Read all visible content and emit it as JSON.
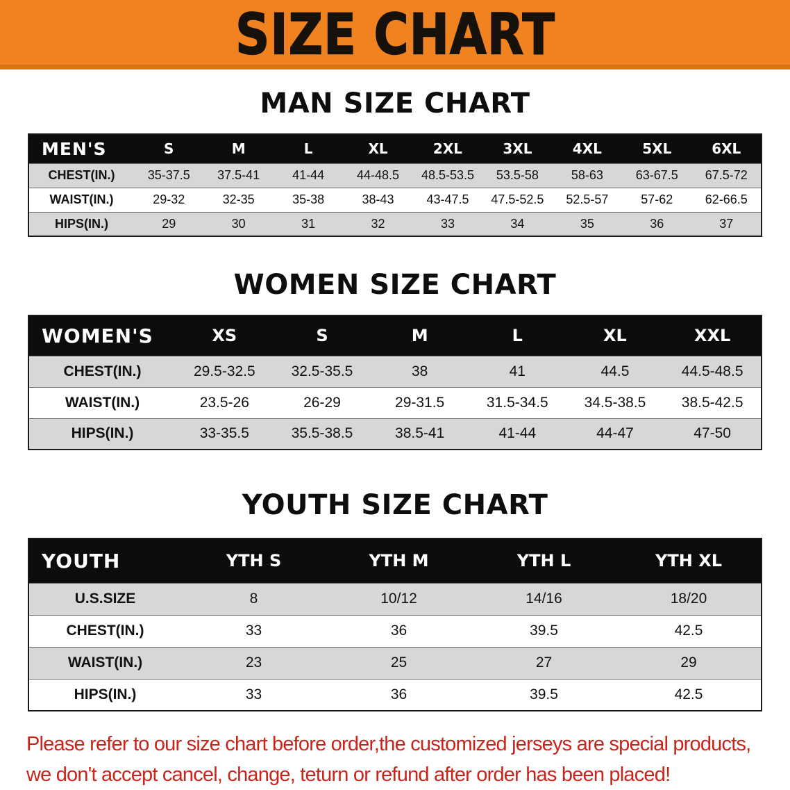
{
  "banner": {
    "title": "SIZE CHART",
    "bg_color": "#f0831f"
  },
  "sections": [
    {
      "heading": "MAN SIZE CHART",
      "table": {
        "title": "MEN'S",
        "columns": [
          "S",
          "M",
          "L",
          "XL",
          "2XL",
          "3XL",
          "4XL",
          "5XL",
          "6XL"
        ],
        "rows": [
          {
            "label": "CHEST(IN.)",
            "values": [
              "35-37.5",
              "37.5-41",
              "41-44",
              "44-48.5",
              "48.5-53.5",
              "53.5-58",
              "58-63",
              "63-67.5",
              "67.5-72"
            ]
          },
          {
            "label": "WAIST(IN.)",
            "values": [
              "29-32",
              "32-35",
              "35-38",
              "38-43",
              "43-47.5",
              "47.5-52.5",
              "52.5-57",
              "57-62",
              "62-66.5"
            ]
          },
          {
            "label": "HIPS(IN.)",
            "values": [
              "29",
              "30",
              "31",
              "32",
              "33",
              "34",
              "35",
              "36",
              "37"
            ]
          }
        ]
      }
    },
    {
      "heading": "WOMEN SIZE CHART",
      "table": {
        "title": "WOMEN'S",
        "columns": [
          "XS",
          "S",
          "M",
          "L",
          "XL",
          "XXL"
        ],
        "rows": [
          {
            "label": "CHEST(IN.)",
            "values": [
              "29.5-32.5",
              "32.5-35.5",
              "38",
              "41",
              "44.5",
              "44.5-48.5"
            ]
          },
          {
            "label": "WAIST(IN.)",
            "values": [
              "23.5-26",
              "26-29",
              "29-31.5",
              "31.5-34.5",
              "34.5-38.5",
              "38.5-42.5"
            ]
          },
          {
            "label": "HIPS(IN.)",
            "values": [
              "33-35.5",
              "35.5-38.5",
              "38.5-41",
              "41-44",
              "44-47",
              "47-50"
            ]
          }
        ]
      }
    },
    {
      "heading": "YOUTH SIZE CHART",
      "table": {
        "title": "YOUTH",
        "columns": [
          "YTH S",
          "YTH M",
          "YTH L",
          "YTH XL"
        ],
        "rows": [
          {
            "label": "U.S.SIZE",
            "values": [
              "8",
              "10/12",
              "14/16",
              "18/20"
            ]
          },
          {
            "label": "CHEST(IN.)",
            "values": [
              "33",
              "36",
              "39.5",
              "42.5"
            ]
          },
          {
            "label": "WAIST(IN.)",
            "values": [
              "23",
              "25",
              "27",
              "29"
            ]
          },
          {
            "label": "HIPS(IN.)",
            "values": [
              "33",
              "36",
              "39.5",
              "42.5"
            ]
          }
        ]
      }
    }
  ],
  "disclaimer": {
    "color": "#c9241a",
    "line1": "Please refer to our size chart before order,the customized jerseys are special products,",
    "line2": "we don't accept cancel, change, teturn or refund after order has been placed!"
  }
}
